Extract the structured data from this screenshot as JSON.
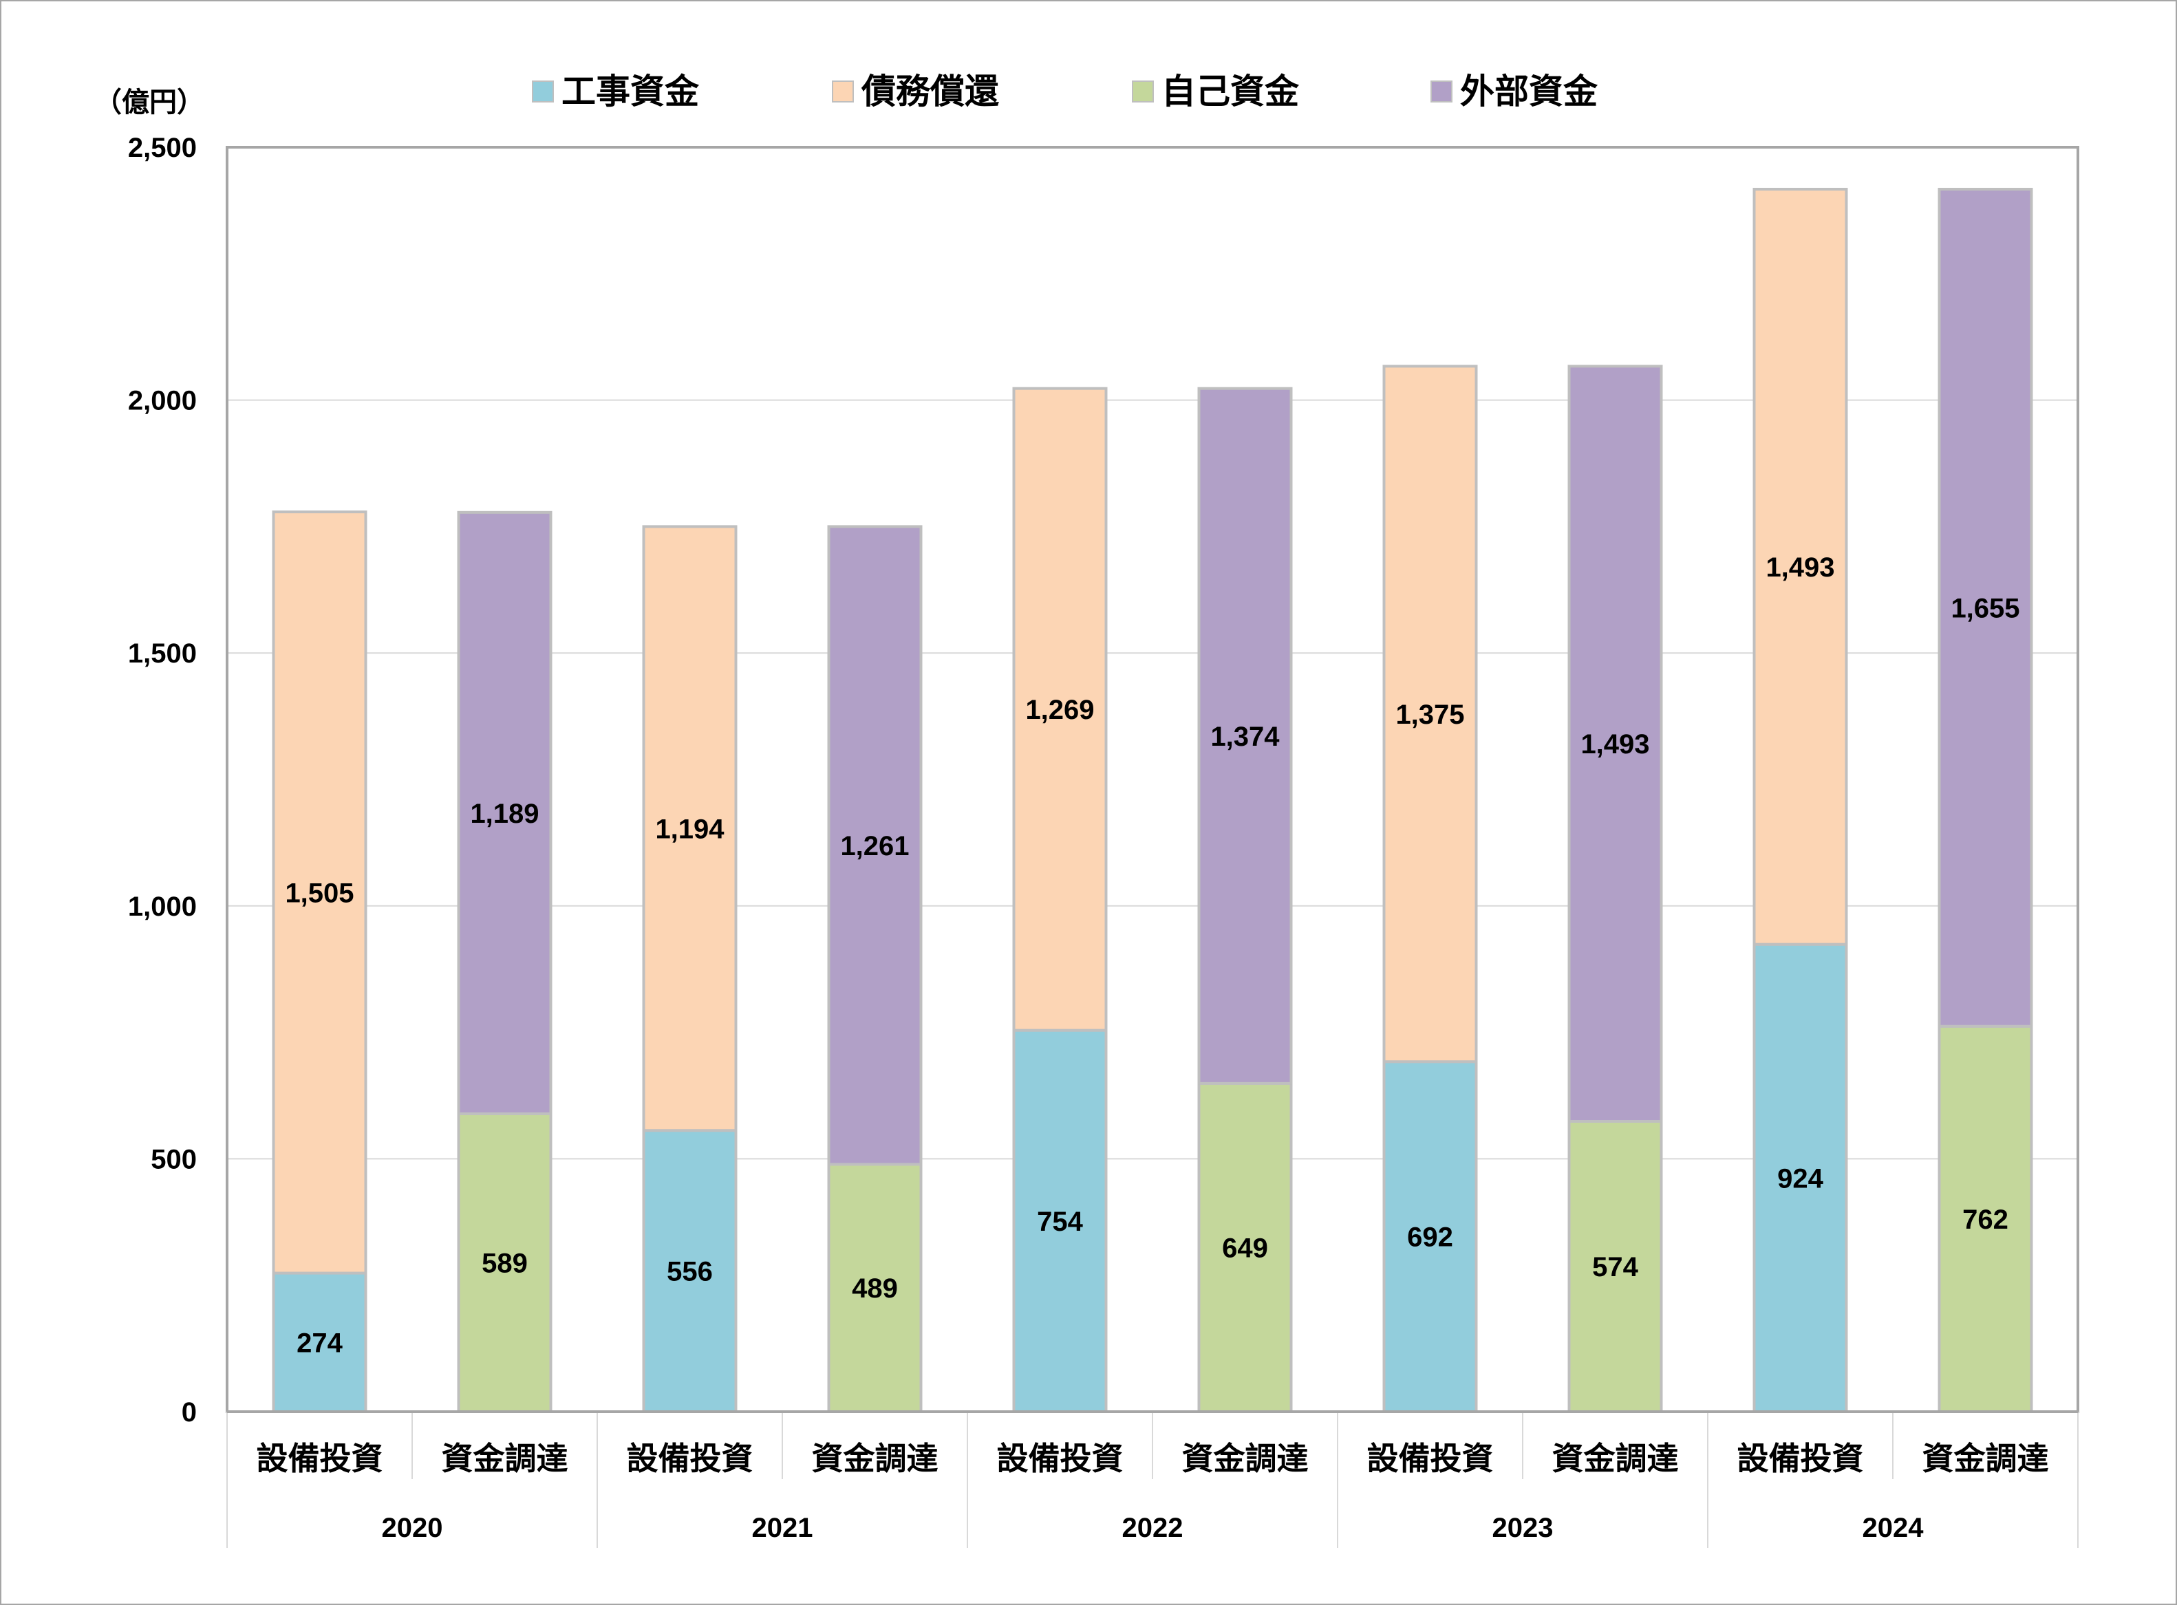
{
  "chart_data": {
    "type": "bar",
    "stacked": true,
    "unit_label": "（億円）",
    "ylim": [
      0,
      2500
    ],
    "y_ticks": [
      0,
      500,
      1000,
      1500,
      2000,
      2500
    ],
    "y_tick_labels": [
      "0",
      "500",
      "1,000",
      "1,500",
      "2,000",
      "2,500"
    ],
    "grid": true,
    "legend_position": "top",
    "legend": [
      {
        "name": "工事資金",
        "color": "#92CDDC"
      },
      {
        "name": "債務償還",
        "color": "#FCD5B4"
      },
      {
        "name": "自己資金",
        "color": "#C4D79B"
      },
      {
        "name": "外部資金",
        "color": "#B1A0C7"
      }
    ],
    "groups": [
      "2020",
      "2021",
      "2022",
      "2023",
      "2024"
    ],
    "categories": [
      "設備投資",
      "資金調達",
      "設備投資",
      "資金調達",
      "設備投資",
      "資金調達",
      "設備投資",
      "資金調達",
      "設備投資",
      "資金調達"
    ],
    "bars": [
      {
        "group": "2020",
        "category": "設備投資",
        "segments": [
          {
            "series": "工事資金",
            "value": 274,
            "label": "274"
          },
          {
            "series": "債務償還",
            "value": 1505,
            "label": "1,505"
          }
        ]
      },
      {
        "group": "2020",
        "category": "資金調達",
        "segments": [
          {
            "series": "自己資金",
            "value": 589,
            "label": "589"
          },
          {
            "series": "外部資金",
            "value": 1189,
            "label": "1,189"
          }
        ]
      },
      {
        "group": "2021",
        "category": "設備投資",
        "segments": [
          {
            "series": "工事資金",
            "value": 556,
            "label": "556"
          },
          {
            "series": "債務償還",
            "value": 1194,
            "label": "1,194"
          }
        ]
      },
      {
        "group": "2021",
        "category": "資金調達",
        "segments": [
          {
            "series": "自己資金",
            "value": 489,
            "label": "489"
          },
          {
            "series": "外部資金",
            "value": 1261,
            "label": "1,261"
          }
        ]
      },
      {
        "group": "2022",
        "category": "設備投資",
        "segments": [
          {
            "series": "工事資金",
            "value": 754,
            "label": "754"
          },
          {
            "series": "債務償還",
            "value": 1269,
            "label": "1,269"
          }
        ]
      },
      {
        "group": "2022",
        "category": "資金調達",
        "segments": [
          {
            "series": "自己資金",
            "value": 649,
            "label": "649"
          },
          {
            "series": "外部資金",
            "value": 1374,
            "label": "1,374"
          }
        ]
      },
      {
        "group": "2023",
        "category": "設備投資",
        "segments": [
          {
            "series": "工事資金",
            "value": 692,
            "label": "692"
          },
          {
            "series": "債務償還",
            "value": 1375,
            "label": "1,375"
          }
        ]
      },
      {
        "group": "2023",
        "category": "資金調達",
        "segments": [
          {
            "series": "自己資金",
            "value": 574,
            "label": "574"
          },
          {
            "series": "外部資金",
            "value": 1493,
            "label": "1,493"
          }
        ]
      },
      {
        "group": "2024",
        "category": "設備投資",
        "segments": [
          {
            "series": "工事資金",
            "value": 924,
            "label": "924"
          },
          {
            "series": "債務償還",
            "value": 1493,
            "label": "1,493"
          }
        ]
      },
      {
        "group": "2024",
        "category": "資金調達",
        "segments": [
          {
            "series": "自己資金",
            "value": 762,
            "label": "762"
          },
          {
            "series": "外部資金",
            "value": 1655,
            "label": "1,655"
          }
        ]
      }
    ]
  }
}
